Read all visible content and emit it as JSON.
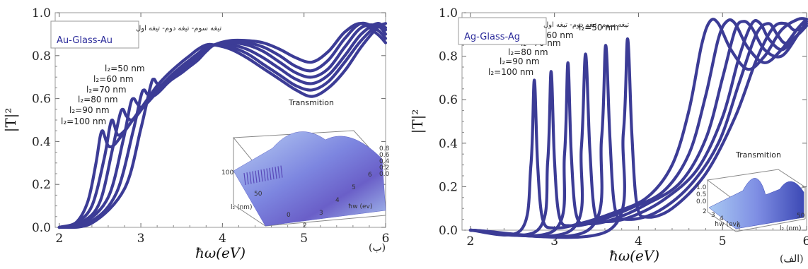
{
  "colors": {
    "curve": "#3c3c96",
    "frame": "#9a9a9a",
    "inset_surface": "#6b6fd6"
  },
  "chart_data": [
    {
      "type": "line",
      "panel_tag": "(ب)",
      "xlabel": "ħω(eV)",
      "ylabel": "|T|²",
      "xlim": [
        1.95,
        6.0
      ],
      "ylim": [
        0,
        1.0
      ],
      "xticks": [
        "2",
        "3",
        "4",
        "5",
        "6"
      ],
      "yticks": [
        "0.0",
        "0.2",
        "0.4",
        "0.6",
        "0.8",
        "1.0"
      ],
      "legend": {
        "line1": "تیغه سوم- تیغه دوم- تیغه اول",
        "line2": "Au-Glass-Au",
        "placement": "top-left"
      },
      "peak_labels": [
        "l₂=100 nm",
        "l₂=90 nm",
        "l₂=80 nm",
        "l₂=70 nm",
        "l₂=60 nm",
        "l₂=50 nm"
      ],
      "series": [
        {
          "label_ref": 0,
          "x": [
            2.0,
            2.2,
            2.35,
            2.45,
            2.5,
            2.53,
            2.56,
            2.6,
            2.66,
            2.75,
            2.9,
            3.05,
            3.2,
            3.35,
            3.5,
            3.6,
            3.7,
            3.8,
            3.9,
            4.1,
            4.3,
            4.5,
            4.7,
            4.9,
            5.1,
            5.3,
            5.5,
            5.7,
            5.9,
            6.0
          ],
          "y": [
            0.0,
            0.02,
            0.12,
            0.3,
            0.42,
            0.45,
            0.42,
            0.38,
            0.38,
            0.42,
            0.5,
            0.58,
            0.66,
            0.72,
            0.77,
            0.8,
            0.83,
            0.85,
            0.85,
            0.83,
            0.79,
            0.74,
            0.69,
            0.64,
            0.61,
            0.65,
            0.73,
            0.84,
            0.93,
            0.95
          ]
        },
        {
          "label_ref": 1,
          "x": [
            2.0,
            2.2,
            2.4,
            2.55,
            2.62,
            2.65,
            2.68,
            2.72,
            2.8,
            2.9,
            3.05,
            3.2,
            3.35,
            3.5,
            3.6,
            3.7,
            3.8,
            3.9,
            4.1,
            4.3,
            4.5,
            4.7,
            4.9,
            5.1,
            5.3,
            5.5,
            5.7,
            5.9,
            6.0
          ],
          "y": [
            0.0,
            0.02,
            0.1,
            0.32,
            0.47,
            0.5,
            0.47,
            0.43,
            0.45,
            0.5,
            0.57,
            0.64,
            0.7,
            0.75,
            0.78,
            0.81,
            0.84,
            0.85,
            0.84,
            0.81,
            0.76,
            0.71,
            0.66,
            0.64,
            0.68,
            0.77,
            0.87,
            0.94,
            0.93
          ]
        },
        {
          "label_ref": 2,
          "x": [
            2.0,
            2.3,
            2.5,
            2.65,
            2.74,
            2.78,
            2.82,
            2.88,
            2.95,
            3.05,
            3.2,
            3.35,
            3.5,
            3.6,
            3.7,
            3.8,
            3.9,
            4.1,
            4.3,
            4.5,
            4.7,
            4.9,
            5.1,
            5.3,
            5.5,
            5.7,
            5.9,
            6.0
          ],
          "y": [
            0.0,
            0.03,
            0.12,
            0.36,
            0.52,
            0.55,
            0.52,
            0.5,
            0.52,
            0.57,
            0.63,
            0.69,
            0.74,
            0.77,
            0.8,
            0.83,
            0.85,
            0.85,
            0.83,
            0.79,
            0.74,
            0.69,
            0.67,
            0.71,
            0.8,
            0.9,
            0.95,
            0.92
          ]
        },
        {
          "label_ref": 3,
          "x": [
            2.0,
            2.3,
            2.6,
            2.78,
            2.87,
            2.91,
            2.95,
            3.0,
            3.08,
            3.2,
            3.35,
            3.5,
            3.6,
            3.7,
            3.8,
            3.9,
            4.1,
            4.3,
            4.5,
            4.7,
            4.9,
            5.1,
            5.3,
            5.5,
            5.7,
            5.9,
            6.0
          ],
          "y": [
            0.0,
            0.02,
            0.14,
            0.4,
            0.57,
            0.6,
            0.58,
            0.56,
            0.58,
            0.63,
            0.68,
            0.73,
            0.76,
            0.79,
            0.82,
            0.85,
            0.86,
            0.85,
            0.82,
            0.77,
            0.72,
            0.7,
            0.74,
            0.84,
            0.93,
            0.94,
            0.9
          ]
        },
        {
          "label_ref": 4,
          "x": [
            2.0,
            2.4,
            2.7,
            2.9,
            3.0,
            3.04,
            3.08,
            3.14,
            3.22,
            3.35,
            3.5,
            3.6,
            3.7,
            3.8,
            3.9,
            4.1,
            4.3,
            4.5,
            4.7,
            4.9,
            5.1,
            5.3,
            5.5,
            5.7,
            5.9,
            6.0
          ],
          "y": [
            0.0,
            0.03,
            0.16,
            0.44,
            0.61,
            0.64,
            0.62,
            0.61,
            0.63,
            0.68,
            0.72,
            0.75,
            0.78,
            0.82,
            0.85,
            0.86,
            0.86,
            0.84,
            0.8,
            0.75,
            0.73,
            0.78,
            0.88,
            0.95,
            0.92,
            0.88
          ]
        },
        {
          "label_ref": 5,
          "x": [
            2.0,
            2.4,
            2.8,
            3.0,
            3.12,
            3.16,
            3.2,
            3.28,
            3.38,
            3.5,
            3.6,
            3.7,
            3.8,
            3.9,
            4.1,
            4.3,
            4.5,
            4.7,
            4.9,
            5.1,
            5.3,
            5.5,
            5.7,
            5.9,
            6.0
          ],
          "y": [
            0.0,
            0.02,
            0.18,
            0.46,
            0.66,
            0.69,
            0.67,
            0.66,
            0.69,
            0.72,
            0.75,
            0.78,
            0.82,
            0.85,
            0.87,
            0.87,
            0.86,
            0.83,
            0.79,
            0.77,
            0.82,
            0.91,
            0.95,
            0.9,
            0.86
          ]
        }
      ],
      "inset": {
        "title": "Transmition",
        "zticks": [
          "0.8",
          "0.6",
          "0.4",
          "0.2",
          "0.0"
        ],
        "ylabel": "l₂ (nm)",
        "yticks": [
          "100",
          "50",
          "0"
        ],
        "xlabel": "ħw (ev)",
        "xticks": [
          "2",
          "3",
          "4",
          "5",
          "6"
        ]
      }
    },
    {
      "type": "line",
      "panel_tag": "(الف)",
      "xlabel": "ħω(eV)",
      "ylabel": "|T|²",
      "xlim": [
        1.9,
        6.0
      ],
      "ylim": [
        0,
        1.0
      ],
      "xticks": [
        "2",
        "3",
        "4",
        "5",
        "6"
      ],
      "yticks": [
        "0.0",
        "0.2",
        "0.4",
        "0.6",
        "0.8",
        "1.0"
      ],
      "legend": {
        "line1": "تیغه سوم- تیغه دوم- تیغه اول",
        "line2": "Ag-Glass-Ag",
        "placement": "top-left"
      },
      "peak_labels": [
        "l₂=100 nm",
        "l₂=90 nm",
        "l₂=80 nm",
        "l₂=70 nm",
        "l₂=60 nm",
        "l₂=50 nm"
      ],
      "series": [
        {
          "label_ref": 0,
          "x": [
            2.0,
            2.6,
            2.72,
            2.76,
            2.8,
            2.86,
            3.0,
            3.3,
            3.7,
            4.1,
            4.4,
            4.6,
            4.75,
            4.85,
            4.95,
            5.1,
            5.3,
            5.5,
            5.7,
            5.9,
            6.0
          ],
          "y": [
            0.0,
            0.0,
            0.3,
            0.69,
            0.3,
            0.05,
            0.01,
            0.03,
            0.08,
            0.15,
            0.3,
            0.55,
            0.85,
            0.96,
            0.95,
            0.83,
            0.74,
            0.8,
            0.92,
            0.97,
            0.97
          ]
        },
        {
          "label_ref": 1,
          "x": [
            2.0,
            2.8,
            2.92,
            2.96,
            3.0,
            3.06,
            3.2,
            3.5,
            3.9,
            4.3,
            4.6,
            4.8,
            4.95,
            5.05,
            5.15,
            5.3,
            5.5,
            5.7,
            5.9,
            6.0
          ],
          "y": [
            0.0,
            0.0,
            0.32,
            0.73,
            0.32,
            0.06,
            0.02,
            0.04,
            0.1,
            0.18,
            0.35,
            0.62,
            0.88,
            0.96,
            0.95,
            0.84,
            0.77,
            0.83,
            0.93,
            0.97
          ]
        },
        {
          "label_ref": 2,
          "x": [
            2.0,
            3.0,
            3.12,
            3.16,
            3.2,
            3.26,
            3.4,
            3.7,
            4.1,
            4.5,
            4.8,
            5.0,
            5.15,
            5.25,
            5.35,
            5.5,
            5.7,
            5.9,
            6.0
          ],
          "y": [
            0.0,
            0.0,
            0.35,
            0.77,
            0.35,
            0.07,
            0.03,
            0.05,
            0.12,
            0.22,
            0.42,
            0.7,
            0.92,
            0.96,
            0.93,
            0.83,
            0.8,
            0.9,
            0.96
          ]
        },
        {
          "label_ref": 3,
          "x": [
            2.0,
            3.2,
            3.32,
            3.37,
            3.42,
            3.48,
            3.6,
            3.9,
            4.3,
            4.7,
            5.0,
            5.2,
            5.35,
            5.45,
            5.55,
            5.7,
            5.85,
            6.0
          ],
          "y": [
            0.0,
            0.0,
            0.38,
            0.81,
            0.38,
            0.08,
            0.04,
            0.06,
            0.14,
            0.28,
            0.52,
            0.8,
            0.95,
            0.95,
            0.88,
            0.83,
            0.88,
            0.95
          ]
        },
        {
          "label_ref": 4,
          "x": [
            2.0,
            3.4,
            3.56,
            3.61,
            3.66,
            3.72,
            3.85,
            4.2,
            4.6,
            4.95,
            5.2,
            5.4,
            5.55,
            5.65,
            5.75,
            5.9,
            6.0
          ],
          "y": [
            0.0,
            0.0,
            0.42,
            0.85,
            0.42,
            0.1,
            0.05,
            0.08,
            0.2,
            0.4,
            0.68,
            0.9,
            0.95,
            0.9,
            0.86,
            0.9,
            0.94
          ]
        },
        {
          "label_ref": 5,
          "x": [
            2.0,
            3.65,
            3.82,
            3.87,
            3.92,
            3.98,
            4.1,
            4.4,
            4.8,
            5.15,
            5.4,
            5.6,
            5.75,
            5.85,
            5.95,
            6.0
          ],
          "y": [
            0.0,
            0.0,
            0.45,
            0.88,
            0.45,
            0.12,
            0.06,
            0.1,
            0.26,
            0.52,
            0.78,
            0.93,
            0.95,
            0.92,
            0.93,
            0.95
          ]
        }
      ],
      "inset": {
        "title": "Transmition",
        "zticks": [
          "1.0",
          "0.5",
          "0.0"
        ],
        "ylabel": "l₂ (nm)",
        "yticks": [
          "100",
          "50",
          "0"
        ],
        "xlabel": "ħw (ev)",
        "xticks": [
          "2",
          "3",
          "4",
          "5",
          "6"
        ]
      }
    }
  ]
}
